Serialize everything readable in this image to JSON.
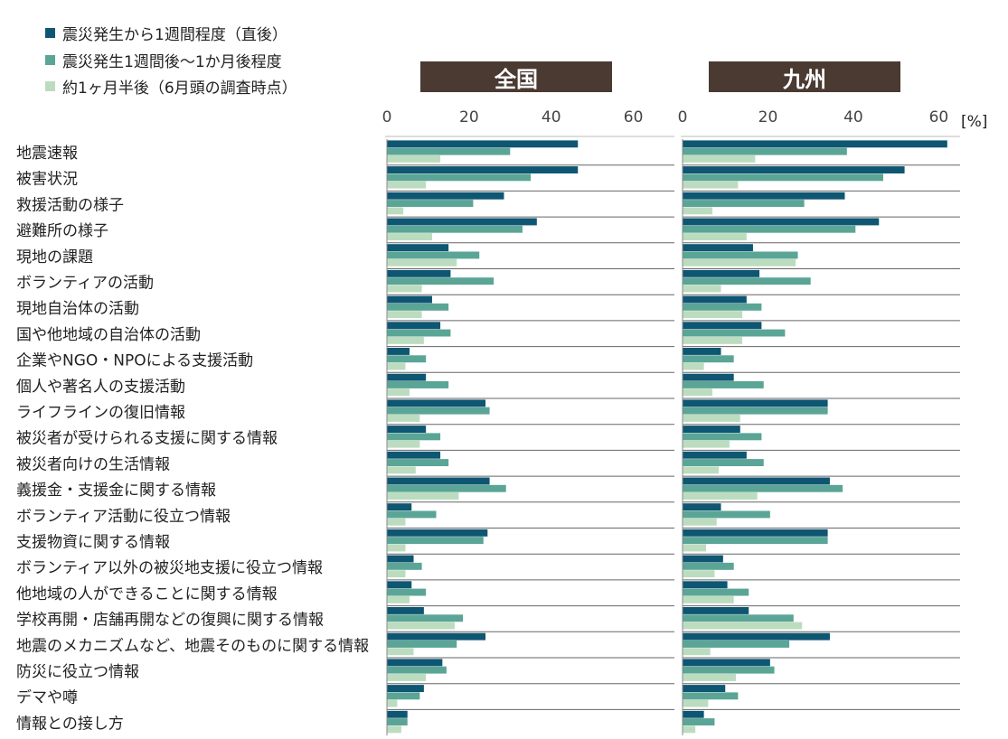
{
  "legend": {
    "items": [
      {
        "label": "震災発生から1週間程度（直後）",
        "color": "#0e5672"
      },
      {
        "label": "震災発生1週間後～1か月後程度",
        "color": "#5aa596"
      },
      {
        "label": "約1ヶ月半後（6月頭の調査時点）",
        "color": "#bcdcc0"
      }
    ]
  },
  "unit": "[%]",
  "chart_data": {
    "type": "bar",
    "orientation": "horizontal",
    "categories": [
      "地震速報",
      "被害状況",
      "救援活動の様子",
      "避難所の様子",
      "現地の課題",
      "ボランティアの活動",
      "現地自治体の活動",
      "国や他地域の自治体の活動",
      "企業やNGO・NPOによる支援活動",
      "個人や著名人の支援活動",
      "ライフラインの復旧情報",
      "被災者が受けられる支援に関する情報",
      "被災者向けの生活情報",
      "義援金・支援金に関する情報",
      "ボランティア活動に役立つ情報",
      "支援物資に関する情報",
      "ボランティア以外の被災地支援に役立つ情報",
      "他地域の人ができることに関する情報",
      "学校再開・店舗再開などの復興に関する情報",
      "地震のメカニズムなど、地震そのものに関する情報",
      "防災に役立つ情報",
      "デマや噂",
      "情報との接し方"
    ],
    "panels": [
      {
        "title": "全国",
        "xlim": [
          0,
          70
        ],
        "ticks": [
          0,
          20,
          40,
          60
        ],
        "series": [
          {
            "values": [
              46.5,
              46.5,
              28.5,
              36.5,
              15,
              15.5,
              11,
              13,
              5.5,
              9.5,
              24,
              9.5,
              13,
              25,
              6,
              24.5,
              6.5,
              6,
              9,
              24,
              13.5,
              9,
              5
            ]
          },
          {
            "values": [
              30,
              35,
              21,
              33,
              22.5,
              26,
              15,
              15.5,
              9.5,
              15,
              25,
              13,
              15,
              29,
              12,
              23.5,
              8.5,
              9.5,
              18.5,
              17,
              14.5,
              8,
              5
            ]
          },
          {
            "values": [
              13,
              9.5,
              4,
              11,
              17,
              8.5,
              8.5,
              9,
              4.5,
              5.5,
              8,
              8,
              7,
              17.5,
              4.5,
              4.5,
              4.5,
              5.5,
              16.5,
              6.5,
              9.5,
              2.5,
              3.5
            ]
          }
        ]
      },
      {
        "title": "九州",
        "xlim": [
          0,
          65
        ],
        "ticks": [
          0,
          20,
          40,
          60
        ],
        "series": [
          {
            "values": [
              62,
              52,
              38,
              46,
              16.5,
              18,
              15,
              18.5,
              9,
              12,
              34,
              13.5,
              15,
              34.5,
              9,
              34,
              9.5,
              10.5,
              15.5,
              34.5,
              20.5,
              10,
              5
            ]
          },
          {
            "values": [
              38.5,
              47,
              28.5,
              40.5,
              27,
              30,
              18.5,
              24,
              12,
              19,
              34,
              18.5,
              19,
              37.5,
              20.5,
              34,
              12,
              15.5,
              26,
              25,
              21.5,
              13,
              7.5
            ]
          },
          {
            "values": [
              17,
              13,
              7,
              15,
              26.5,
              9,
              14,
              14,
              5,
              7,
              13.5,
              11,
              8.5,
              17.5,
              8,
              5.5,
              7.5,
              12,
              28,
              6.5,
              12.5,
              6,
              3
            ]
          }
        ]
      }
    ]
  }
}
